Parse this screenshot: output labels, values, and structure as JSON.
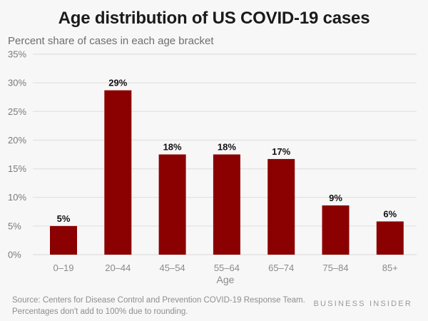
{
  "chart_data": {
    "type": "bar",
    "title": "Age distribution of US COVID-19 cases",
    "subtitle": "Percent share of cases in each age bracket",
    "xlabel": "Age",
    "ylabel": "Percent share of cases",
    "categories": [
      "0–19",
      "20–44",
      "45–54",
      "55–64",
      "65–74",
      "75–84",
      "85+"
    ],
    "values": [
      5,
      28.7,
      17.5,
      17.5,
      16.7,
      8.6,
      5.8
    ],
    "data_labels": [
      "5%",
      "29%",
      "18%",
      "18%",
      "17%",
      "9%",
      "6%"
    ],
    "ylim": [
      0,
      35
    ],
    "yticks": [
      0,
      5,
      10,
      15,
      20,
      25,
      30,
      35
    ],
    "ytick_labels": [
      "0%",
      "5%",
      "10%",
      "15%",
      "20%",
      "25%",
      "30%",
      "35%"
    ],
    "grid": true,
    "bar_color": "#8b0000"
  },
  "footer": {
    "source_label": "Source:",
    "source_text": "Centers for Disease Control and Prevention COVID-19 Response Team.",
    "note": "Percentages don't add to 100% due to rounding."
  },
  "brand": "BUSINESS INSIDER"
}
